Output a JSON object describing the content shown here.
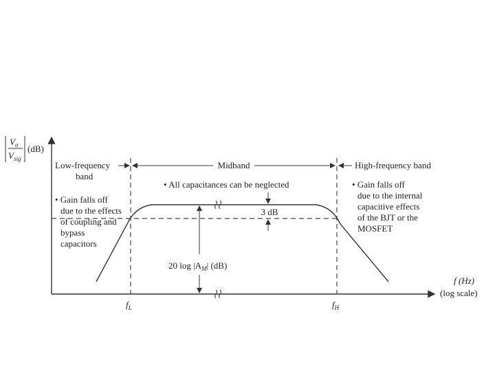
{
  "y_axis": {
    "numerator": "V",
    "numerator_sub": "o",
    "denominator": "V",
    "denominator_sub": "sig",
    "unit": "(dB)"
  },
  "bands": {
    "low": [
      "Low-frequency",
      "band"
    ],
    "mid": "Midband",
    "high": "High-frequency band"
  },
  "mid_note": "• All capacitances can be neglected",
  "low_note": [
    "• Gain falls off",
    "due to the effects",
    "of coupling and",
    "bypass",
    "capacitors"
  ],
  "high_note": [
    "• Gain falls off",
    "due to the internal",
    "capacitive effects",
    "of the BJT or the",
    "MOSFET"
  ],
  "drop_label": "3 dB",
  "gain_label": {
    "before": "20 log |A",
    "sub": "M",
    "after": "| (dB)"
  },
  "x_axis": {
    "label": "f (Hz)",
    "scale": "(log scale)"
  },
  "f_low": {
    "symbol": "f",
    "sub": "L"
  },
  "f_high": {
    "symbol": "f",
    "sub": "H"
  }
}
